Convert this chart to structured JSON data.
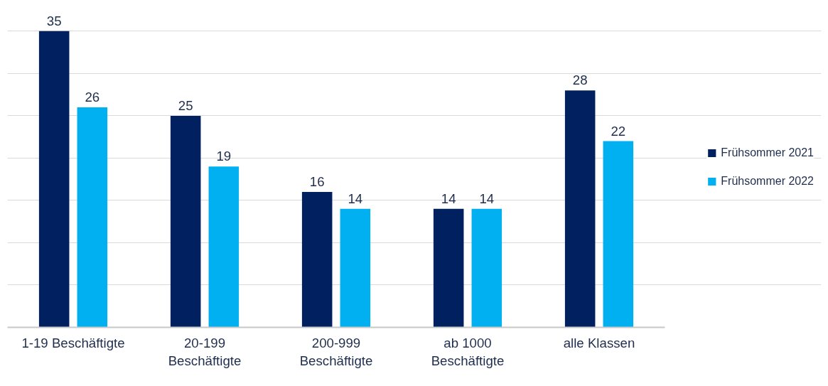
{
  "chart_data": {
    "type": "bar",
    "categories": [
      "1-19 Beschäftigte",
      "20-199 Beschäftigte",
      "200-999 Beschäftigte",
      "ab 1000 Beschäftigte",
      "alle Klassen"
    ],
    "series": [
      {
        "name": "Frühsommer 2021",
        "color": "#002060",
        "values": [
          35,
          25,
          16,
          14,
          28
        ]
      },
      {
        "name": "Frühsommer 2022",
        "color": "#00b0f0",
        "values": [
          26,
          19,
          14,
          14,
          22
        ]
      }
    ],
    "tick_labels": "x",
    "grid": "y",
    "legend": "right",
    "data_labels": true
  }
}
